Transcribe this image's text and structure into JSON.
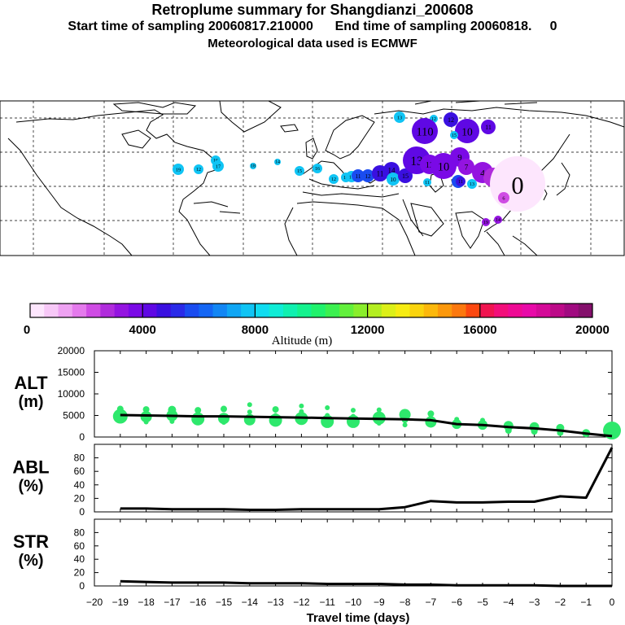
{
  "header": {
    "title": "Retroplume summary for Shangdianzi_200608",
    "sampling": "Start time of sampling 20060817.210000      End time of sampling 20060818.     0",
    "met": "Meteorological data used is ECMWF"
  },
  "colorbar": {
    "label": "Altitude (m)",
    "ticks": [
      "0",
      "4000",
      "8000",
      "12000",
      "16000",
      "20000"
    ],
    "colors": [
      "#fde6fd",
      "#f7c8f7",
      "#eea2f2",
      "#e47aec",
      "#cf4ce4",
      "#b02cdc",
      "#9414e0",
      "#7a0ae6",
      "#5f08e4",
      "#3a10e0",
      "#2a2ae8",
      "#1a4cf0",
      "#1466f4",
      "#1286f4",
      "#10a6f4",
      "#10c4f4",
      "#10dcf0",
      "#10ecd6",
      "#10f0b0",
      "#14f28e",
      "#20f26c",
      "#3cf050",
      "#62f03c",
      "#8aee2c",
      "#b4ee20",
      "#dcf018",
      "#f6ec12",
      "#fad40e",
      "#fcb80c",
      "#fc980c",
      "#fc780e",
      "#fc4810",
      "#f01450",
      "#f20e7a",
      "#ee0a94",
      "#e80aa8",
      "#d40a98",
      "#bc0a88",
      "#a00a80",
      "#84106c"
    ]
  },
  "map": {
    "points": [
      {
        "label": "13",
        "color": "#10c4f4",
        "size": 7
      },
      {
        "label": "12",
        "color": "#10c4f4",
        "size": 5
      },
      {
        "label": "12",
        "color": "#3a10e0",
        "size": 9
      },
      {
        "label": "11",
        "color": "#5f08e4",
        "size": 9
      },
      {
        "label": "110",
        "color": "#5f08e4",
        "size": 16
      },
      {
        "label": "10",
        "color": "#5f08e4",
        "size": 15
      },
      {
        "label": "16",
        "color": "#10c4f4",
        "size": 6
      },
      {
        "label": "17",
        "color": "#10c4f4",
        "size": 7
      },
      {
        "label": "19",
        "color": "#10c4f4",
        "size": 7
      },
      {
        "label": "12",
        "color": "#10c4f4",
        "size": 6
      },
      {
        "label": "18",
        "color": "#10c4f4",
        "size": 4
      },
      {
        "label": "14",
        "color": "#10c4f4",
        "size": 4
      },
      {
        "label": "15",
        "color": "#10c4f4",
        "size": 6
      },
      {
        "label": "16",
        "color": "#10c4f4",
        "size": 6
      },
      {
        "label": "12",
        "color": "#10c4f4",
        "size": 6
      },
      {
        "label": "16",
        "color": "#10c4f4",
        "size": 6
      },
      {
        "label": "17",
        "color": "#10c4f4",
        "size": 7
      },
      {
        "label": "11",
        "color": "#1a4cf0",
        "size": 8
      },
      {
        "label": "12",
        "color": "#1a4cf0",
        "size": 8
      },
      {
        "label": "11",
        "color": "#3a10e0",
        "size": 10
      },
      {
        "label": "14",
        "color": "#3a10e0",
        "size": 10
      },
      {
        "label": "10",
        "color": "#10c4f4",
        "size": 8
      },
      {
        "label": "15",
        "color": "#3a10e0",
        "size": 9
      },
      {
        "label": "11",
        "color": "#10c4f4",
        "size": 5
      },
      {
        "label": "13",
        "color": "#5f08e4",
        "size": 17
      },
      {
        "label": "12",
        "color": "#7a0ae6",
        "size": 12
      },
      {
        "label": "10",
        "color": "#7a0ae6",
        "size": 16
      },
      {
        "label": "9",
        "color": "#7a0ae6",
        "size": 12
      },
      {
        "label": "7",
        "color": "#9414e0",
        "size": 10
      },
      {
        "label": "4",
        "color": "#9414e0",
        "size": 13
      },
      {
        "label": "3",
        "color": "#b02cdc",
        "size": 12
      },
      {
        "label": "2",
        "color": "#cf4ce4",
        "size": 14
      },
      {
        "label": "8",
        "color": "#1a4cf0",
        "size": 8
      },
      {
        "label": "11",
        "color": "#3a10e0",
        "size": 6
      },
      {
        "label": "13",
        "color": "#10c4f4",
        "size": 6
      },
      {
        "label": "15",
        "color": "#10c4f4",
        "size": 5
      },
      {
        "label": "5",
        "color": "#b02cdc",
        "size": 16
      },
      {
        "label": "1",
        "color": "#cf4ce4",
        "size": 10
      },
      {
        "label": "0",
        "color": "#fde6fd",
        "size": 34
      },
      {
        "label": "6",
        "color": "#cf4ce4",
        "size": 7
      },
      {
        "label": "19",
        "color": "#9414e0",
        "size": 5
      },
      {
        "label": "14",
        "color": "#9414e0",
        "size": 5
      }
    ]
  },
  "axis": {
    "xlabel": "Travel time (days)",
    "xticks": [
      "−20",
      "−19",
      "−18",
      "−17",
      "−16",
      "−15",
      "−14",
      "−13",
      "−12",
      "−11",
      "−10",
      "−9",
      "−8",
      "−7",
      "−6",
      "−5",
      "−4",
      "−3",
      "−2",
      "−1",
      "0"
    ]
  },
  "chart_data": [
    {
      "type": "line",
      "title": "ALT",
      "ylabel": "ALT (m)",
      "panel_label": "ALT",
      "panel_unit": "(m)",
      "yticks": [
        "20000",
        "15000",
        "10000",
        "5000",
        "0"
      ],
      "ylim": [
        0,
        20000
      ],
      "x": [
        -19,
        -18,
        -17,
        -16,
        -15,
        -14,
        -13,
        -12,
        -11,
        -10,
        -9,
        -8,
        -7,
        -6,
        -5,
        -4,
        -3,
        -2,
        -1,
        0
      ],
      "series": [
        {
          "name": "mean altitude",
          "values": [
            5100,
            5000,
            4900,
            4800,
            4800,
            4700,
            4600,
            4500,
            4400,
            4300,
            4200,
            4100,
            3900,
            3000,
            2800,
            2300,
            2000,
            1500,
            800,
            200
          ]
        }
      ],
      "scatter": [
        {
          "x": -19,
          "y": 4800,
          "s": 9
        },
        {
          "x": -19,
          "y": 6500,
          "s": 4
        },
        {
          "x": -19,
          "y": 5900,
          "s": 3
        },
        {
          "x": -19,
          "y": 3800,
          "s": 3
        },
        {
          "x": -18,
          "y": 4700,
          "s": 7
        },
        {
          "x": -18,
          "y": 6400,
          "s": 4
        },
        {
          "x": -18,
          "y": 3500,
          "s": 3
        },
        {
          "x": -17,
          "y": 5000,
          "s": 7
        },
        {
          "x": -17,
          "y": 6300,
          "s": 5
        },
        {
          "x": -17,
          "y": 3600,
          "s": 3
        },
        {
          "x": -16,
          "y": 4200,
          "s": 8
        },
        {
          "x": -16,
          "y": 6200,
          "s": 4
        },
        {
          "x": -16,
          "y": 5300,
          "s": 3
        },
        {
          "x": -15,
          "y": 4300,
          "s": 7
        },
        {
          "x": -15,
          "y": 6500,
          "s": 4
        },
        {
          "x": -15,
          "y": 3400,
          "s": 3
        },
        {
          "x": -14,
          "y": 4000,
          "s": 7
        },
        {
          "x": -14,
          "y": 7500,
          "s": 3
        },
        {
          "x": -14,
          "y": 5800,
          "s": 3
        },
        {
          "x": -13,
          "y": 3900,
          "s": 8
        },
        {
          "x": -13,
          "y": 6400,
          "s": 4
        },
        {
          "x": -13,
          "y": 5000,
          "s": 3
        },
        {
          "x": -12,
          "y": 4300,
          "s": 8
        },
        {
          "x": -12,
          "y": 7200,
          "s": 3
        },
        {
          "x": -12,
          "y": 5900,
          "s": 3
        },
        {
          "x": -11,
          "y": 3600,
          "s": 8
        },
        {
          "x": -11,
          "y": 6800,
          "s": 3
        },
        {
          "x": -11,
          "y": 5000,
          "s": 3
        },
        {
          "x": -10,
          "y": 3600,
          "s": 8
        },
        {
          "x": -10,
          "y": 6200,
          "s": 3
        },
        {
          "x": -10,
          "y": 4800,
          "s": 3
        },
        {
          "x": -9,
          "y": 4400,
          "s": 8
        },
        {
          "x": -9,
          "y": 6300,
          "s": 3
        },
        {
          "x": -9,
          "y": 3200,
          "s": 3
        },
        {
          "x": -8,
          "y": 5200,
          "s": 7
        },
        {
          "x": -8,
          "y": 4000,
          "s": 4
        },
        {
          "x": -8,
          "y": 2800,
          "s": 3
        },
        {
          "x": -7,
          "y": 3500,
          "s": 7
        },
        {
          "x": -7,
          "y": 5400,
          "s": 4
        },
        {
          "x": -7,
          "y": 4400,
          "s": 3
        },
        {
          "x": -6,
          "y": 3000,
          "s": 6
        },
        {
          "x": -6,
          "y": 4100,
          "s": 3
        },
        {
          "x": -5,
          "y": 2800,
          "s": 6
        },
        {
          "x": -5,
          "y": 3900,
          "s": 3
        },
        {
          "x": -4,
          "y": 2600,
          "s": 6
        },
        {
          "x": -4,
          "y": 1500,
          "s": 4
        },
        {
          "x": -3,
          "y": 2300,
          "s": 6
        },
        {
          "x": -3,
          "y": 1300,
          "s": 4
        },
        {
          "x": -2,
          "y": 2100,
          "s": 5
        },
        {
          "x": -2,
          "y": 1000,
          "s": 4
        },
        {
          "x": -1,
          "y": 900,
          "s": 5
        },
        {
          "x": 0,
          "y": 1500,
          "s": 11
        },
        {
          "x": 0,
          "y": 600,
          "s": 6
        }
      ]
    },
    {
      "type": "line",
      "title": "ABL",
      "ylabel": "ABL (%)",
      "panel_label": "ABL",
      "panel_unit": "(%)",
      "yticks": [
        "80",
        "60",
        "40",
        "20",
        "0"
      ],
      "ylim": [
        0,
        100
      ],
      "x": [
        -19,
        -18,
        -17,
        -16,
        -15,
        -14,
        -13,
        -12,
        -11,
        -10,
        -9,
        -8,
        -7,
        -6,
        -5,
        -4,
        -3,
        -2,
        -1,
        0
      ],
      "series": [
        {
          "name": "ABL fraction",
          "values": [
            5,
            5,
            4,
            4,
            4,
            3,
            3,
            4,
            4,
            4,
            4,
            7,
            16,
            14,
            14,
            15,
            15,
            23,
            21,
            95
          ]
        }
      ]
    },
    {
      "type": "line",
      "title": "STR",
      "ylabel": "STR (%)",
      "panel_label": "STR",
      "panel_unit": "(%)",
      "yticks": [
        "80",
        "60",
        "40",
        "20",
        "0"
      ],
      "ylim": [
        0,
        100
      ],
      "x": [
        -19,
        -18,
        -17,
        -16,
        -15,
        -14,
        -13,
        -12,
        -11,
        -10,
        -9,
        -8,
        -7,
        -6,
        -5,
        -4,
        -3,
        -2,
        -1,
        0
      ],
      "series": [
        {
          "name": "stratospheric fraction",
          "values": [
            7,
            6,
            5,
            5,
            5,
            4,
            4,
            4,
            3,
            3,
            3,
            2,
            2,
            1,
            1,
            1,
            1,
            0,
            0,
            0
          ]
        }
      ]
    }
  ]
}
